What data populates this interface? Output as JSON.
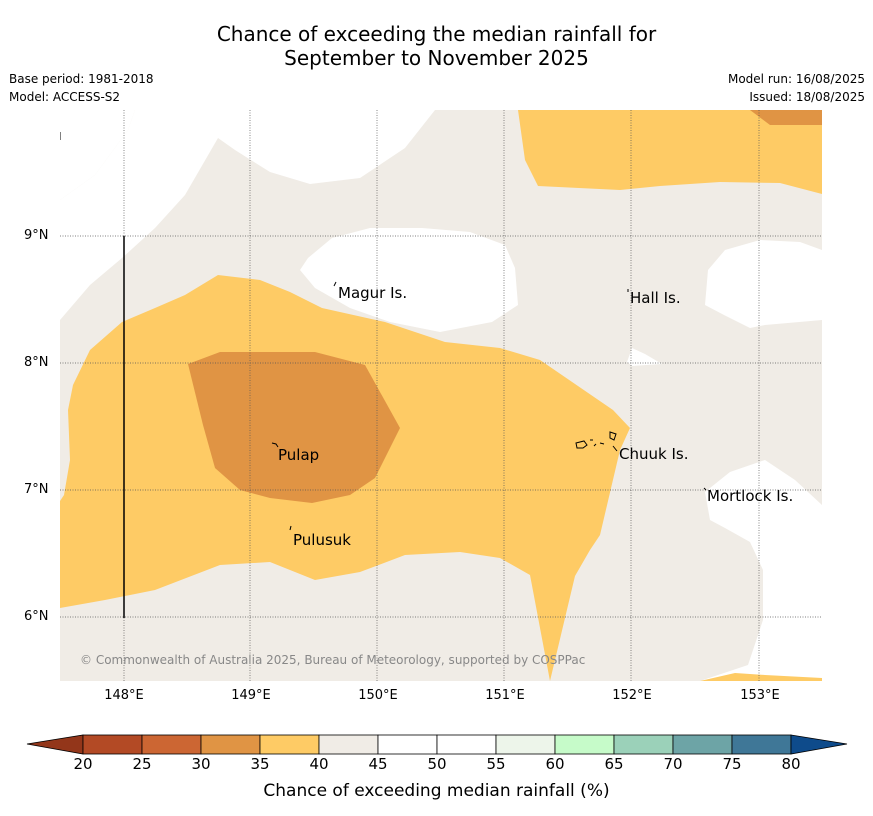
{
  "header": {
    "title_line1": "Chance of exceeding the median rainfall for",
    "title_line2": "September to November 2025",
    "base_period": "Base period: 1981-2018",
    "model": "Model: ACCESS-S2",
    "model_run": "Model run: 16/08/2025",
    "issued": "Issued: 18/08/2025"
  },
  "map": {
    "y_axis_labels": [
      "9°N",
      "8°N",
      "7°N",
      "6°N"
    ],
    "x_axis_labels": [
      "148°E",
      "149°E",
      "150°E",
      "151°E",
      "152°E",
      "153°E"
    ],
    "places": [
      {
        "name": "Magur Is."
      },
      {
        "name": "Hall Is."
      },
      {
        "name": "Pulap"
      },
      {
        "name": "Chuuk Is."
      },
      {
        "name": "Mortlock Is."
      },
      {
        "name": "Pulusuk"
      }
    ],
    "copyright": "© Commonwealth of Australia 2025, Bureau of Meteorology, supported by COSPPac",
    "colors": {
      "20-25": "#b34a25",
      "25-30": "#cc6633",
      "30-35": "#e09444",
      "35-40": "#fecb65",
      "40-45": "#f0ece6",
      "45-55": "#ffffff",
      "55-60": "#edf5ea",
      "60-65": "#c6fbc9",
      "65-70": "#9bd1b9",
      "70-75": "#6da4a6",
      "75-80": "#3f7797",
      "gt80": "#0e4b8b",
      "lt20": "#93361a"
    }
  },
  "colorbar": {
    "ticks": [
      "20",
      "25",
      "30",
      "35",
      "40",
      "45",
      "50",
      "55",
      "60",
      "65",
      "70",
      "75",
      "80"
    ],
    "label": "Chance of exceeding median rainfall (%)"
  }
}
